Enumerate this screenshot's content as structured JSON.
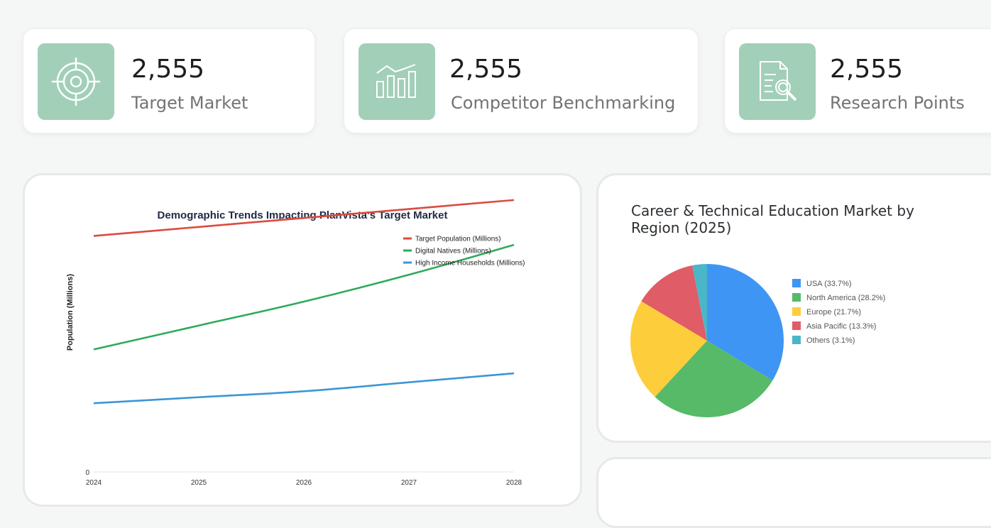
{
  "stats": [
    {
      "value": "2,555",
      "label": "Target Market",
      "icon": "target-icon"
    },
    {
      "value": "2,555",
      "label": "Competitor Benchmarking",
      "icon": "bar-chart-icon"
    },
    {
      "value": "2,555",
      "label": "Research Points",
      "icon": "document-search-icon"
    }
  ],
  "colors": {
    "icon_bg": "#a2cfb8",
    "red": "#db4b3e",
    "green": "#2faa5a",
    "blue": "#3b97d3"
  },
  "line_chart": {
    "title": "Demographic Trends Impacting PlanVista's Target Market",
    "chart_data": {
      "type": "line",
      "title": "Demographic Trends Impacting PlanVista's Target Market",
      "x": [
        "2024",
        "2025",
        "2026",
        "2027",
        "2028"
      ],
      "ylabel": "Population (Millions)",
      "y_tick_visible": "0",
      "ylim": [
        0,
        100
      ],
      "legend": "top-right",
      "series": [
        {
          "name": "Target Population (Millions)",
          "values": [
            79,
            82,
            85,
            88,
            91
          ],
          "color": "#db4b3e"
        },
        {
          "name": "Digital Natives (Millions)",
          "values": [
            41,
            49,
            57,
            66,
            76
          ],
          "color": "#2faa5a"
        },
        {
          "name": "High Income Households (Millions)",
          "values": [
            23,
            25,
            27,
            30,
            33
          ],
          "color": "#3b97d3"
        }
      ]
    }
  },
  "pie_chart": {
    "title": "Career & Technical Education Market by Region (2025)",
    "chart_data": {
      "type": "pie",
      "title": "Career & Technical Education Market by Region (2025)",
      "legend": "right",
      "slices": [
        {
          "label": "USA (33.7%)",
          "value": 33.7,
          "color": "#3e95f3"
        },
        {
          "label": "North America (28.2%)",
          "value": 28.2,
          "color": "#56ba68"
        },
        {
          "label": "Europe (21.7%)",
          "value": 21.7,
          "color": "#fecd3b"
        },
        {
          "label": "Asia Pacific (13.3%)",
          "value": 13.3,
          "color": "#e05c67"
        },
        {
          "label": "Others (3.1%)",
          "value": 3.1,
          "color": "#4ab7c9"
        }
      ]
    }
  }
}
